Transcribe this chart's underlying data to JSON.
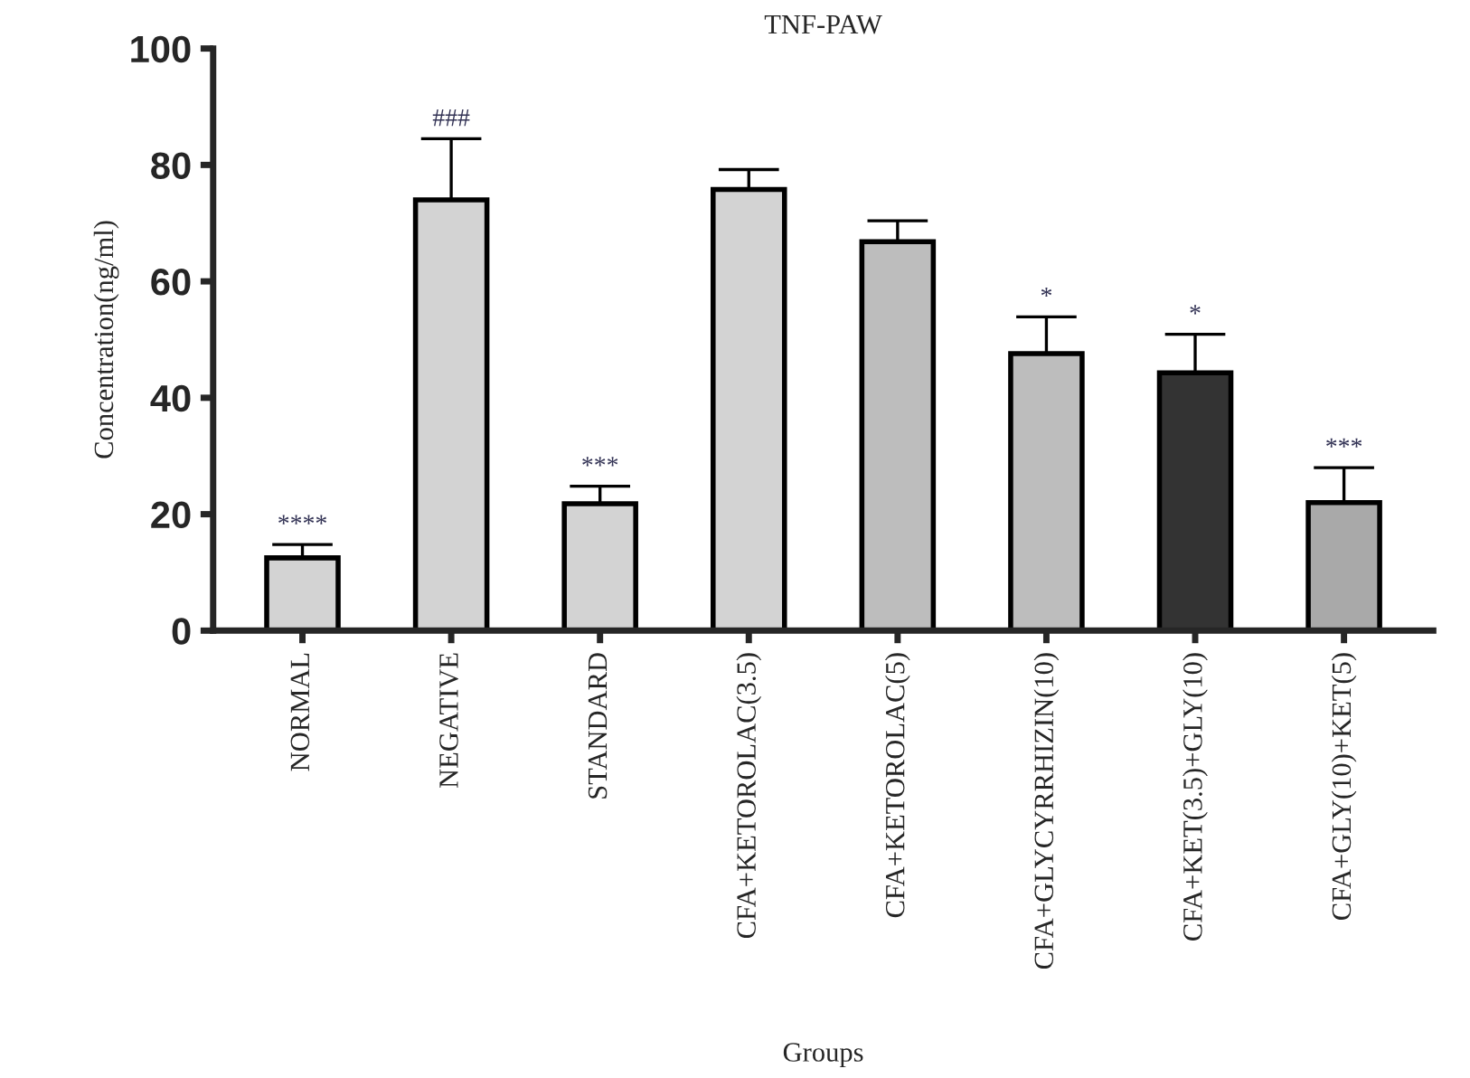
{
  "chart_data": {
    "type": "bar",
    "title": "TNF-PAW",
    "xlabel": "Groups",
    "ylabel": "Concentration(ng/ml)",
    "categories": [
      "NORMAL",
      "NEGATIVE",
      "STANDARD",
      "CFA+KETOROLAC(3.5)",
      "CFA+KETOROLAC(5)",
      "CFA+GLYCYRRHIZIN(10)",
      "CFA+KET(3.5)+GLY(10)",
      "CFA+GLY(10)+KET(5)"
    ],
    "values": [
      12.5,
      74,
      21.8,
      75.8,
      66.8,
      47.6,
      44.3,
      22.0
    ],
    "errors": [
      2.3,
      10.5,
      3.0,
      3.4,
      3.6,
      6.3,
      6.6,
      6.0
    ],
    "colors": [
      "#d3d3d3",
      "#d3d3d3",
      "#d3d3d3",
      "#d3d3d3",
      "#bdbdbd",
      "#bdbdbd",
      "#333333",
      "#a9a9a9"
    ],
    "value_labels": [
      "****",
      "###",
      "***",
      null,
      null,
      "*",
      "*",
      "***"
    ],
    "ylim": [
      0,
      100
    ],
    "yticks": [
      0,
      20,
      40,
      60,
      80,
      100
    ],
    "grid": false,
    "legend": false
  }
}
